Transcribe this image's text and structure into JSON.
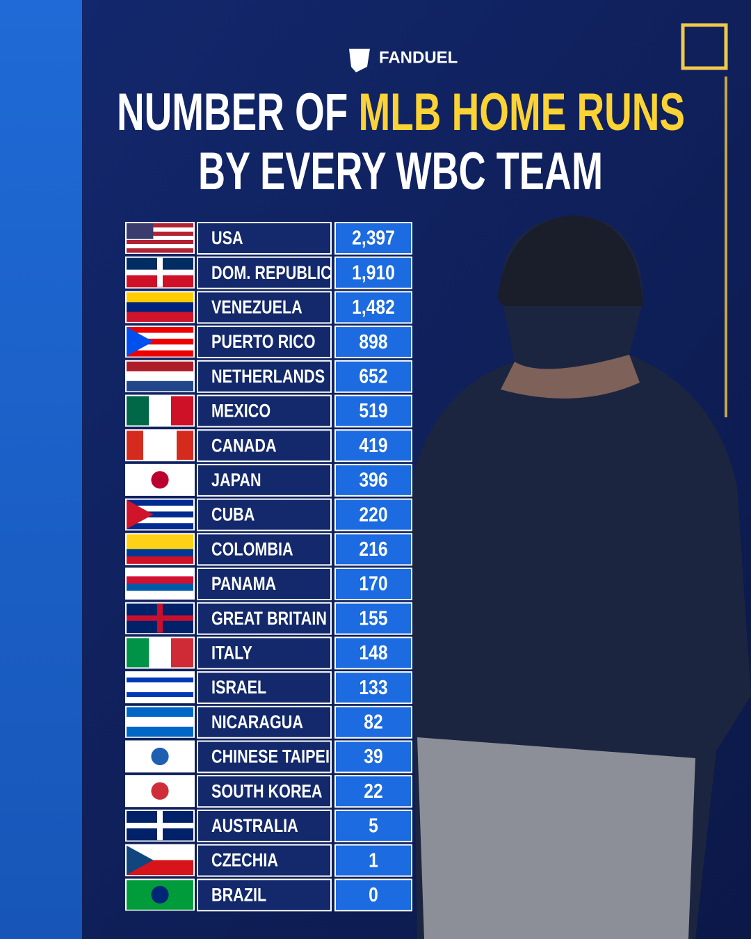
{
  "brand": "FANDUEL",
  "title": {
    "line1_start": "NUMBER OF",
    "line1_highlight": "MLB HOME RUNS",
    "line2": "BY EVERY WBC TEAM"
  },
  "table": {
    "rows": [
      [
        "USA",
        "2,397"
      ],
      [
        "DOM. REPUBLIC",
        "1,910"
      ],
      [
        "VENEZUELA",
        "1,482"
      ],
      [
        "PUERTO RICO",
        "898"
      ],
      [
        "NETHERLANDS",
        "652"
      ],
      [
        "MEXICO",
        "519"
      ],
      [
        "CANADA",
        "419"
      ],
      [
        "JAPAN",
        "396"
      ],
      [
        "CUBA",
        "220"
      ],
      [
        "COLOMBIA",
        "216"
      ],
      [
        "PANAMA",
        "170"
      ],
      [
        "GREAT BRITAIN",
        "155"
      ],
      [
        "ITALY",
        "148"
      ],
      [
        "ISRAEL",
        "133"
      ],
      [
        "NICARAGUA",
        "82"
      ],
      [
        "CHINESE TAIPEI",
        "39"
      ],
      [
        "SOUTH KOREA",
        "22"
      ],
      [
        "AUSTRALIA",
        "5"
      ],
      [
        "CZECHIA",
        "1"
      ],
      [
        "BRAZIL",
        "0"
      ]
    ]
  }
}
